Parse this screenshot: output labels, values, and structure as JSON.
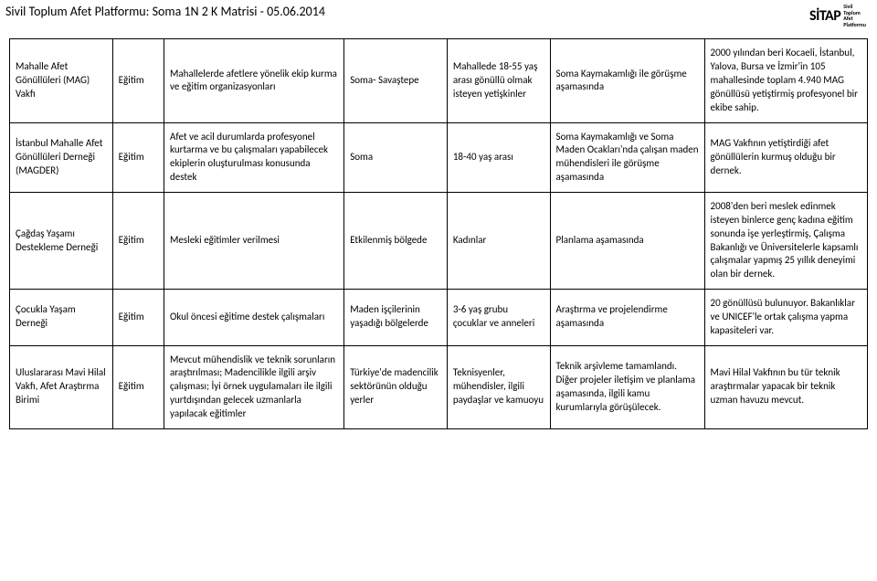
{
  "header": {
    "title": "Sivil Toplum Afet Platformu: Soma 1N 2 K Matrisi - 05.06.2014",
    "logo_main": "SİTAP",
    "logo_sub_line1": "Sivil",
    "logo_sub_line2": "Toplum",
    "logo_sub_line3": "Afet",
    "logo_sub_line4": "Platformu"
  },
  "table": {
    "rows": [
      {
        "c0": "Mahalle Afet Gönüllüleri (MAG) Vakfı",
        "c1": "Eğitim",
        "c2": "Mahallelerde afetlere yönelik ekip kurma ve eğitim organizasyonları",
        "c3": "Soma- Savaştepe",
        "c4": "Mahallede 18-55 yaş arası gönüllü olmak isteyen yetişkinler",
        "c5": "Soma Kaymakamlığı ile görüşme aşamasında",
        "c6": "2000 yılından beri Kocaeli, İstanbul, Yalova, Bursa ve İzmir'in 105 mahallesinde toplam 4.940 MAG gönüllüsü yetiştirmiş profesyonel bir ekibe sahip."
      },
      {
        "c0": "İstanbul Mahalle Afet Gönüllüleri Derneği (MAGDER)",
        "c1": "Eğitim",
        "c2": "Afet ve acil durumlarda profesyonel kurtarma ve bu çalışmaları yapabilecek ekiplerin oluşturulması konusunda destek",
        "c3": "Soma",
        "c4": "18-40 yaş arası",
        "c5": "Soma Kaymakamlığı ve Soma Maden Ocakları'nda çalışan maden mühendisleri ile görüşme aşamasında",
        "c6": "MAG Vakfının yetiştirdiği afet gönüllülerin kurmuş olduğu bir dernek."
      },
      {
        "c0": "Çağdaş Yaşamı Destekleme Derneği",
        "c1": "Eğitim",
        "c2": "Mesleki eğitimler verilmesi",
        "c3": "Etkilenmiş bölgede",
        "c4": "Kadınlar",
        "c5": "Planlama aşamasında",
        "c6": "2008'den beri meslek edinmek isteyen binlerce genç kadına eğitim sonunda işe yerleştirmiş, Çalışma Bakanlığı ve Üniversitelerle kapsamlı çalışmalar yapmış 25 yıllık deneyimi olan bir dernek."
      },
      {
        "c0": "Çocukla Yaşam Derneği",
        "c1": "Eğitim",
        "c2": "Okul öncesi eğitime destek çalışmaları",
        "c3": "Maden işçilerinin yaşadığı bölgelerde",
        "c4": "3-6 yaş grubu çocuklar ve anneleri",
        "c5": "Araştırma ve projelendirme aşamasında",
        "c6": "20 gönüllüsü bulunuyor. Bakanlıklar ve UNICEF'le ortak çalışma yapma kapasiteleri var."
      },
      {
        "c0": "Uluslararası Mavi Hilal  Vakfı, Afet Araştırma Birimi",
        "c1": "Eğitim",
        "c2": "Mevcut mühendislik ve teknik sorunların araştırılması; Madencilikle ilgili arşiv çalışması; İyi örnek uygulamaları ile ilgili yurtdışından gelecek uzmanlarla yapılacak eğitimler",
        "c3": "Türkiye'de madencilik sektörünün olduğu yerler",
        "c4": "Teknisyenler, mühendisler, ilgili paydaşlar ve kamuoyu",
        "c5": "Teknik arşivleme tamamlandı.  Diğer projeler iletişim ve planlama aşamasında, ilgili kamu kurumlarıyla görüşülecek.",
        "c6": "Mavi Hilal Vakfının bu tür teknik araştırmalar yapacak bir teknik uzman havuzu mevcut."
      }
    ]
  }
}
